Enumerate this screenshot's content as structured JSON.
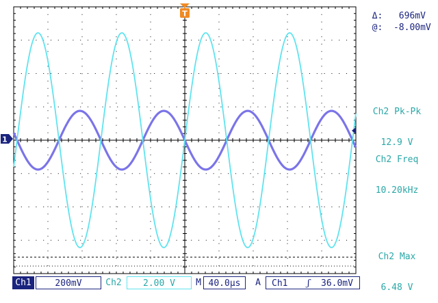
{
  "cursor": {
    "delta_label": "Δ:",
    "delta_value": "696mV",
    "at_label": "@:",
    "at_value": "-8.00mV"
  },
  "measurements": [
    {
      "label": "Ch2 Pk-Pk",
      "value": "12.9 V"
    },
    {
      "label": "Ch2 Freq",
      "value": "10.20kHz"
    },
    {
      "label": "Ch2 Max",
      "value": "6.48 V"
    }
  ],
  "markers": {
    "trigger_position": "T",
    "ch1_ground": "1"
  },
  "status": {
    "ch1_label": "Ch1",
    "ch1_scale": "200mV",
    "ch2_label": "Ch2",
    "ch2_scale": "2.00 V",
    "timebase_label": "M",
    "timebase": "40.0µs",
    "trigger_mode": "A",
    "trigger_source": "Ch1",
    "trigger_slope": "ʃ",
    "trigger_level": "36.0mV"
  },
  "colors": {
    "ch1": "#7b74e8",
    "ch2": "#5fe3ef",
    "measurement_text": "#2aa7a7",
    "trigger_marker": "#f08a24",
    "grid": "#000000"
  },
  "chart_data": {
    "type": "line",
    "xlabel": "",
    "ylabel": "",
    "x_divisions": 10,
    "y_divisions": 8,
    "timebase_per_div_us": 40.0,
    "series": [
      {
        "channel": "Ch1",
        "volts_per_div": 0.2,
        "waveform": "sine",
        "frequency_hz": 10200,
        "amplitude_div": 0.88,
        "offset_div": 0.0
      },
      {
        "channel": "Ch2",
        "volts_per_div": 2.0,
        "waveform": "sine",
        "frequency_hz": 10200,
        "amplitude_div": 3.22,
        "offset_div": 0.0
      }
    ]
  }
}
